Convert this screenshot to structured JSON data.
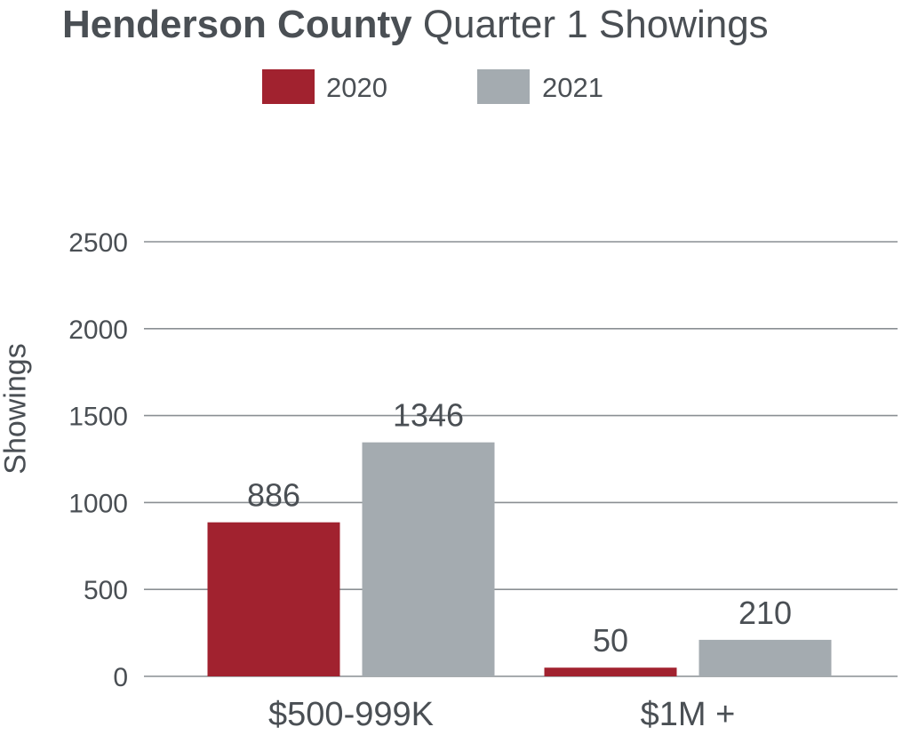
{
  "title": {
    "bold": "Henderson County",
    "light": "Quarter 1 Showings"
  },
  "colors": {
    "series_2020": "#a1222f",
    "series_2021": "#a4abb0",
    "grid": "#8a8f93",
    "text": "#4a4f54"
  },
  "chart_data": {
    "type": "bar",
    "title": "Henderson County Quarter 1 Showings",
    "xlabel": "",
    "ylabel": "Showings",
    "categories": [
      "$500-999K",
      "$1M +"
    ],
    "series": [
      {
        "name": "2020",
        "values": [
          886,
          50
        ]
      },
      {
        "name": "2021",
        "values": [
          1346,
          210
        ]
      }
    ],
    "ylim": [
      0,
      2500
    ],
    "yticks": [
      "0",
      "500",
      "1000",
      "1500",
      "2000",
      "2500"
    ],
    "grid": true,
    "legend_position": "top-center",
    "data_labels": true
  }
}
